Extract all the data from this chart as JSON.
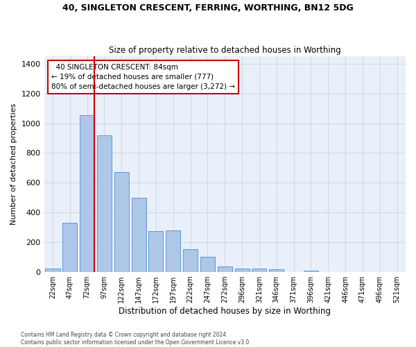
{
  "title1": "40, SINGLETON CRESCENT, FERRING, WORTHING, BN12 5DG",
  "title2": "Size of property relative to detached houses in Worthing",
  "xlabel": "Distribution of detached houses by size in Worthing",
  "ylabel": "Number of detached properties",
  "categories": [
    "22sqm",
    "47sqm",
    "72sqm",
    "97sqm",
    "122sqm",
    "147sqm",
    "172sqm",
    "197sqm",
    "222sqm",
    "247sqm",
    "272sqm",
    "296sqm",
    "321sqm",
    "346sqm",
    "371sqm",
    "396sqm",
    "421sqm",
    "446sqm",
    "471sqm",
    "496sqm",
    "521sqm"
  ],
  "values": [
    22,
    330,
    1055,
    920,
    670,
    500,
    275,
    280,
    155,
    103,
    38,
    25,
    25,
    18,
    0,
    12,
    0,
    0,
    0,
    0,
    0
  ],
  "bar_color": "#aec6e8",
  "bar_edge_color": "#5b9bd5",
  "bg_color": "#eaf0f9",
  "grid_color": "#d0daea",
  "property_line_color": "#cc0000",
  "annotation_text": "  40 SINGLETON CRESCENT: 84sqm  \n← 19% of detached houses are smaller (777)\n80% of semi-detached houses are larger (3,272) →",
  "annotation_box_color": "#cc0000",
  "footer": "Contains HM Land Registry data © Crown copyright and database right 2024.\nContains public sector information licensed under the Open Government Licence v3.0.",
  "ylim": [
    0,
    1450
  ],
  "yticks": [
    0,
    200,
    400,
    600,
    800,
    1000,
    1200,
    1400
  ]
}
